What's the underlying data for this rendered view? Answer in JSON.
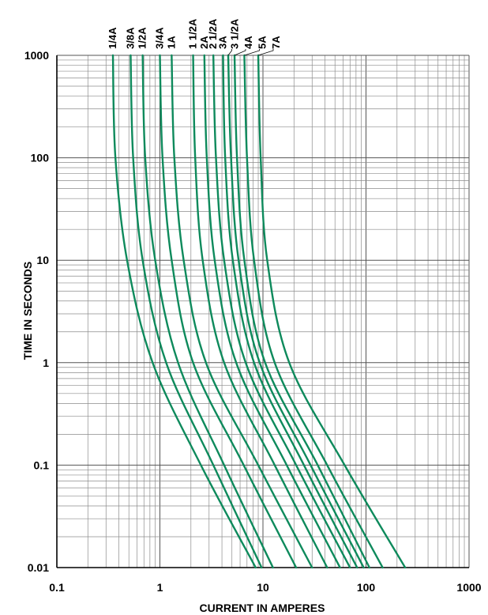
{
  "chart_data": {
    "type": "line",
    "xscale": "log",
    "yscale": "log",
    "xlim": [
      0.1,
      1000
    ],
    "ylim": [
      0.01,
      1000
    ],
    "grid": true,
    "xlabel": "CURRENT IN AMPERES",
    "ylabel": "TIME IN SECONDS",
    "x_ticks": [
      "0.1",
      "1",
      "10",
      "100",
      "1000"
    ],
    "y_ticks": [
      "1000",
      "100",
      "10",
      "1",
      "0.1",
      "0.01"
    ],
    "line_color": "#0e8a5c",
    "series": [
      {
        "name": "1/4A",
        "points": [
          [
            0.35,
            1000
          ],
          [
            0.37,
            100
          ],
          [
            0.48,
            10
          ],
          [
            0.85,
            1
          ],
          [
            2.5,
            0.1
          ],
          [
            8.5,
            0.01
          ]
        ]
      },
      {
        "name": "3/8A",
        "points": [
          [
            0.52,
            1000
          ],
          [
            0.55,
            100
          ],
          [
            0.68,
            10
          ],
          [
            1.15,
            1
          ],
          [
            3.3,
            0.1
          ],
          [
            9.7,
            0.01
          ]
        ]
      },
      {
        "name": "1/2A",
        "points": [
          [
            0.68,
            1000
          ],
          [
            0.72,
            100
          ],
          [
            0.9,
            10
          ],
          [
            1.5,
            1
          ],
          [
            4.2,
            0.1
          ],
          [
            12.5,
            0.01
          ]
        ]
      },
      {
        "name": "3/4A",
        "points": [
          [
            1.0,
            1000
          ],
          [
            1.06,
            100
          ],
          [
            1.3,
            10
          ],
          [
            2.1,
            1
          ],
          [
            6.5,
            0.1
          ],
          [
            21,
            0.01
          ]
        ]
      },
      {
        "name": "1A",
        "points": [
          [
            1.3,
            1000
          ],
          [
            1.38,
            100
          ],
          [
            1.7,
            10
          ],
          [
            2.8,
            1
          ],
          [
            9,
            0.1
          ],
          [
            30,
            0.01
          ]
        ]
      },
      {
        "name": "1 1/2A",
        "points": [
          [
            2.1,
            1000
          ],
          [
            2.2,
            100
          ],
          [
            2.6,
            10
          ],
          [
            4.2,
            1
          ],
          [
            13,
            0.1
          ],
          [
            42,
            0.01
          ]
        ]
      },
      {
        "name": "2A",
        "points": [
          [
            2.7,
            1000
          ],
          [
            2.85,
            100
          ],
          [
            3.4,
            10
          ],
          [
            5.5,
            1
          ],
          [
            17,
            0.1
          ],
          [
            56,
            0.01
          ]
        ]
      },
      {
        "name": "2 1/2A",
        "points": [
          [
            3.3,
            1000
          ],
          [
            3.5,
            100
          ],
          [
            4.2,
            10
          ],
          [
            6.8,
            1
          ],
          [
            21,
            0.1
          ],
          [
            70,
            0.01
          ]
        ]
      },
      {
        "name": "3A",
        "points": [
          [
            4.1,
            1000
          ],
          [
            4.3,
            100
          ],
          [
            5.1,
            10
          ],
          [
            8.2,
            1
          ],
          [
            25,
            0.1
          ],
          [
            82,
            0.01
          ]
        ]
      },
      {
        "name": "3 1/2A",
        "points": [
          [
            4.6,
            1000
          ],
          [
            4.9,
            100
          ],
          [
            5.8,
            10
          ],
          [
            9.3,
            1
          ],
          [
            29,
            0.1
          ],
          [
            95,
            0.01
          ]
        ]
      },
      {
        "name": "4A",
        "points": [
          [
            5.3,
            1000
          ],
          [
            5.6,
            100
          ],
          [
            6.6,
            10
          ],
          [
            10.5,
            1
          ],
          [
            34,
            0.1
          ],
          [
            108,
            0.01
          ]
        ]
      },
      {
        "name": "5A",
        "points": [
          [
            6.6,
            1000
          ],
          [
            7.0,
            100
          ],
          [
            8.2,
            10
          ],
          [
            13,
            1
          ],
          [
            42,
            0.1
          ],
          [
            145,
            0.01
          ]
        ]
      },
      {
        "name": "7A",
        "points": [
          [
            9.0,
            1000
          ],
          [
            9.5,
            100
          ],
          [
            11,
            10
          ],
          [
            18,
            1
          ],
          [
            62,
            0.1
          ],
          [
            240,
            0.01
          ]
        ]
      }
    ]
  }
}
